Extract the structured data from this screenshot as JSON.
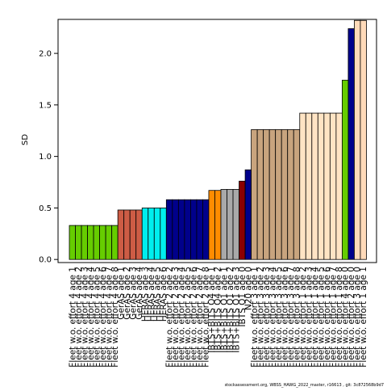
{
  "chart_data": {
    "type": "bar",
    "ylabel": "SD",
    "footer": "stockassessment.org, WBSS_HAWG_2022_master, r16613 , git: 3c872568b9d7",
    "categories": [
      "Fleet w.o. effort 4 age 1",
      "Fleet w.o. effort 4 age 2",
      "Fleet w.o. effort 4 age 3",
      "Fleet w.o. effort 4 age 4",
      "Fleet w.o. effort 4 age 5",
      "Fleet w.o. effort 4 age 6",
      "Fleet w.o. effort 4 age 7",
      "Fleet w.o. effort 4 age 8",
      "GerAS age 1",
      "GerAS age 2",
      "GerAS age 3",
      "GerAS age 4",
      "HERAS age 3",
      "HERAS age 4",
      "HERAS age 5",
      "HERAS age 6",
      "Fleet w.o. effort 2 age 2",
      "Fleet w.o. effort 2 age 3",
      "Fleet w.o. effort 2 age 4",
      "Fleet w.o. effort 2 age 5",
      "Fleet w.o. effort 2 age 6",
      "Fleet w.o. effort 2 age 7",
      "Fleet w.o. effort 2 age 8",
      "IBTS+BITS Q4 age 1",
      "IBTS+BITS Q4 age 2",
      "IBTS+BITS Q1 age 1",
      "IBTS+BITS Q1 age 2",
      "IBTS+BITS Q1 age 3",
      "IBTS Q1 age 0",
      "N20 age 0",
      "Fleet w.o. effort 3 age 1",
      "Fleet w.o. effort 3 age 2",
      "Fleet w.o. effort 3 age 3",
      "Fleet w.o. effort 3 age 4",
      "Fleet w.o. effort 3 age 5",
      "Fleet w.o. effort 3 age 6",
      "Fleet w.o. effort 3 age 7",
      "Fleet w.o. effort 3 age 8",
      "Fleet w.o. effort 1 age 2",
      "Fleet w.o. effort 1 age 3",
      "Fleet w.o. effort 1 age 4",
      "Fleet w.o. effort 1 age 5",
      "Fleet w.o. effort 1 age 6",
      "Fleet w.o. effort 1 age 7",
      "Fleet w.o. effort 1 age 8",
      "Fleet w.o. effort 4 age 0",
      "Fleet w.o. effort 2 age 0",
      "Fleet w.o. effort 3 age 0",
      "Fleet w.o. effort 1 age 1"
    ],
    "values": [
      0.33,
      0.33,
      0.33,
      0.33,
      0.33,
      0.33,
      0.33,
      0.33,
      0.48,
      0.48,
      0.48,
      0.48,
      0.5,
      0.5,
      0.5,
      0.5,
      0.58,
      0.58,
      0.58,
      0.58,
      0.58,
      0.58,
      0.58,
      0.67,
      0.67,
      0.68,
      0.68,
      0.68,
      0.76,
      0.87,
      1.26,
      1.26,
      1.26,
      1.26,
      1.26,
      1.26,
      1.26,
      1.26,
      1.42,
      1.42,
      1.42,
      1.42,
      1.42,
      1.42,
      1.42,
      1.74,
      2.24,
      2.32,
      2.32
    ],
    "colors": [
      "#66cd00",
      "#66cd00",
      "#66cd00",
      "#66cd00",
      "#66cd00",
      "#66cd00",
      "#66cd00",
      "#66cd00",
      "#cd5c45",
      "#cd5c45",
      "#cd5c45",
      "#cd5c45",
      "#00eeee",
      "#00eeee",
      "#00eeee",
      "#00eeee",
      "#00008b",
      "#00008b",
      "#00008b",
      "#00008b",
      "#00008b",
      "#00008b",
      "#00008b",
      "#ff8c00",
      "#ff8c00",
      "#a9a9a9",
      "#a9a9a9",
      "#a9a9a9",
      "#8b0000",
      "#00008b",
      "#c8a47e",
      "#c8a47e",
      "#c8a47e",
      "#c8a47e",
      "#c8a47e",
      "#c8a47e",
      "#c8a47e",
      "#c8a47e",
      "#ffe4c4",
      "#ffe4c4",
      "#ffe4c4",
      "#ffe4c4",
      "#ffe4c4",
      "#ffe4c4",
      "#ffe4c4",
      "#66cd00",
      "#00008b",
      "#ffdab9",
      "#ffdab9"
    ],
    "ylim": [
      -0.03,
      2.33
    ],
    "yticks": [
      {
        "value": 0,
        "label": "0.0"
      },
      0.5,
      {
        "value": 1,
        "label": "1.0"
      },
      1.5,
      {
        "value": 2,
        "label": "2.0"
      }
    ]
  }
}
